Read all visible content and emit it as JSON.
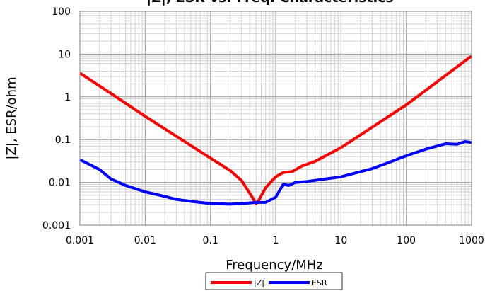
{
  "chart_data": {
    "type": "line",
    "title": "|Z|, ESR vs. Freq. Characteristics",
    "xlabel": "Frequency/MHz",
    "ylabel": "|Z|, ESR/ohm",
    "x_scale": "log",
    "y_scale": "log",
    "xlim": [
      0.001,
      1000
    ],
    "ylim": [
      0.001,
      100
    ],
    "x_ticks": [
      "0.001",
      "0.01",
      "0.1",
      "1",
      "10",
      "100",
      "1000"
    ],
    "y_ticks": [
      "100",
      "10",
      "1",
      "0.1",
      "0.01",
      "0.001"
    ],
    "grid": true,
    "legend_position": "bottom",
    "series": [
      {
        "name": "|Z|",
        "color": "#ff0000",
        "x": [
          0.001,
          0.003,
          0.01,
          0.03,
          0.1,
          0.2,
          0.3,
          0.45,
          0.5,
          0.55,
          0.7,
          1.0,
          1.3,
          1.8,
          2.5,
          4,
          10,
          100,
          1000
        ],
        "y": [
          3.6,
          1.2,
          0.35,
          0.12,
          0.037,
          0.019,
          0.011,
          0.0042,
          0.0032,
          0.0038,
          0.0075,
          0.0135,
          0.017,
          0.018,
          0.024,
          0.031,
          0.065,
          0.65,
          9.0
        ]
      },
      {
        "name": "ESR",
        "color": "#0000ff",
        "x": [
          0.001,
          0.002,
          0.003,
          0.005,
          0.01,
          0.02,
          0.03,
          0.05,
          0.1,
          0.2,
          0.3,
          0.5,
          0.7,
          1.0,
          1.3,
          1.6,
          2.0,
          3.0,
          10,
          30,
          50,
          100,
          200,
          400,
          600,
          800,
          1000
        ],
        "y": [
          0.034,
          0.02,
          0.012,
          0.0085,
          0.006,
          0.0047,
          0.004,
          0.0036,
          0.0032,
          0.0031,
          0.0032,
          0.0034,
          0.0034,
          0.0045,
          0.009,
          0.0085,
          0.01,
          0.0105,
          0.0135,
          0.021,
          0.028,
          0.042,
          0.06,
          0.08,
          0.078,
          0.09,
          0.085
        ]
      }
    ]
  }
}
